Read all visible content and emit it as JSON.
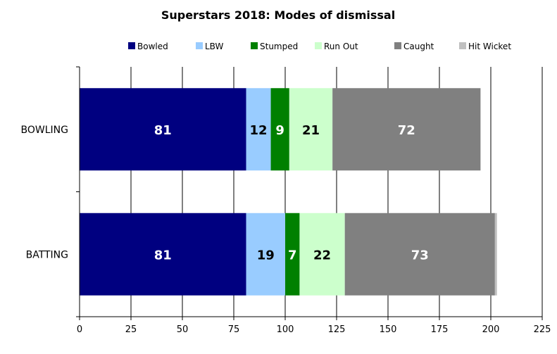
{
  "chart_data": {
    "type": "bar",
    "orientation": "horizontal",
    "stacked": true,
    "title": "Superstars 2018: Modes of dismissal",
    "categories": [
      "BOWLING",
      "BATTING"
    ],
    "series": [
      {
        "name": "Bowled",
        "color": "#000080",
        "label_color": "#ffffff",
        "values": [
          81,
          81
        ]
      },
      {
        "name": "LBW",
        "color": "#99ccff",
        "label_color": "#000000",
        "values": [
          12,
          19
        ]
      },
      {
        "name": "Stumped",
        "color": "#008000",
        "label_color": "#ffffff",
        "values": [
          9,
          7
        ]
      },
      {
        "name": "Run Out",
        "color": "#ccffcc",
        "label_color": "#000000",
        "values": [
          21,
          22
        ]
      },
      {
        "name": "Caught",
        "color": "#808080",
        "label_color": "#ffffff",
        "values": [
          72,
          73
        ]
      },
      {
        "name": "Hit Wicket",
        "color": "#c0c0c0",
        "label_color": "#000000",
        "values": [
          0,
          1
        ],
        "show_labels": false
      }
    ],
    "xlim": [
      0,
      225
    ],
    "xticks": [
      0,
      25,
      50,
      75,
      100,
      125,
      150,
      175,
      200,
      225
    ],
    "grid": true,
    "legend_position": "top"
  }
}
